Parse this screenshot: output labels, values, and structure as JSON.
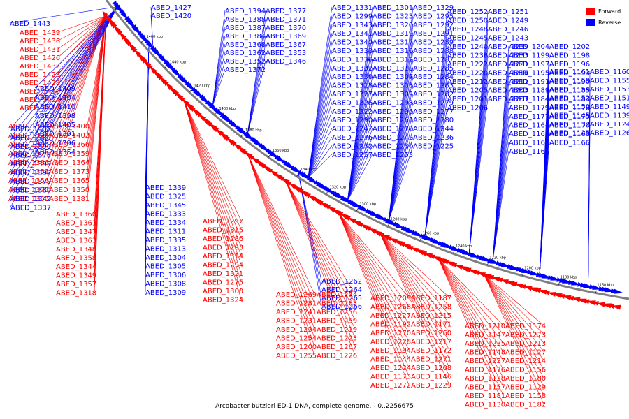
{
  "caption": "Arcobacter butzleri ED-1 DNA, complete genome. - 0..2256675",
  "legend": [
    {
      "label": "Forward",
      "color": "#ff0000"
    },
    {
      "label": "Reverse",
      "color": "#0000ff"
    }
  ],
  "colors": {
    "forward": "#ff0000",
    "reverse": "#0000ff",
    "backbone": "#808080"
  },
  "tick_labels": [
    "1460 kbp",
    "1440 kbp",
    "1420 kbp",
    "1400 kbp",
    "1380 kbp",
    "1360 kbp",
    "1340 kbp",
    "1320 kbp",
    "1300 kbp",
    "1280 kbp",
    "1260 kbp",
    "1240 kbp",
    "1220 kbp",
    "1200 kbp",
    "1180 kbp",
    "1160 kbp"
  ],
  "forward_genes": [
    "ABED_1439",
    "ABED_1436",
    "ABED_1431",
    "ABED_1426",
    "ABED_1432",
    "ABED_1423",
    "ABED_1428",
    "ABED_1418",
    "ABED_1424",
    "ABED_1421",
    "ABED_1383",
    "ABED_1400",
    "ABED_1376",
    "ABED_1402",
    "ABED_1385",
    "ABED_1366",
    "ABED_1374",
    "ABED_1359",
    "ABED_1386",
    "ABED_1364",
    "ABED_1351",
    "ABED_1373",
    "ABED_1356",
    "ABED_1365",
    "ABED_1375",
    "ABED_1350",
    "ABED_1355",
    "ABED_1381",
    "ABED_1360",
    "ABED_1361",
    "ABED_1347",
    "ABED_1363",
    "ABED_1348",
    "ABED_1358",
    "ABED_1344",
    "ABED_1349",
    "ABED_1357",
    "ABED_1318",
    "ABED_1297",
    "ABED_1315",
    "ABED_1286",
    "ABED_1293",
    "ABED_1314",
    "ABED_1294",
    "ABED_1321",
    "ABED_1275",
    "ABED_1300",
    "ABED_1324",
    "ABED_1269",
    "ABED_1274",
    "ABED_1281",
    "ABED_1263",
    "ABED_1241",
    "ABED_1256",
    "ABED_1231",
    "ABED_1259",
    "ABED_1234",
    "ABED_1219",
    "ABED_1254",
    "ABED_1223",
    "ABED_1200",
    "ABED_1267",
    "ABED_1255",
    "ABED_1226",
    "ABED_1209",
    "ABED_1187",
    "ABED_1268",
    "ABED_1258",
    "ABED_1227",
    "ABED_1215",
    "ABED_1192",
    "ABED_1171",
    "ABED_1270",
    "ABED_1260",
    "ABED_1228",
    "ABED_1217",
    "ABED_1194",
    "ABED_1172",
    "ABED_1144",
    "ABED_1271",
    "ABED_1224",
    "ABED_1208",
    "ABED_1173",
    "ABED_1146",
    "ABED_1272",
    "ABED_1229",
    "ABED_1210",
    "ABED_1174",
    "ABED_1147",
    "ABED_1273",
    "ABED_1235",
    "ABED_1213",
    "ABED_1148",
    "ABED_1127",
    "ABED_1237",
    "ABED_1214",
    "ABED_1176",
    "ABED_1156",
    "ABED_1128",
    "ABED_1180",
    "ABED_1157",
    "ABED_1129",
    "ABED_1181",
    "ABED_1158",
    "ABED_1130",
    "ABED_1182",
    "ABED_1162"
  ],
  "reverse_genes": [
    "ABED_1443",
    "ABED_1427",
    "ABED_1420",
    "ABED_1394",
    "ABED_1377",
    "ABED_1388",
    "ABED_1371",
    "ABED_1387",
    "ABED_1370",
    "ABED_1384",
    "ABED_1369",
    "ABED_1368",
    "ABED_1367",
    "ABED_1362",
    "ABED_1353",
    "ABED_1352",
    "ABED_1346",
    "ABED_1372",
    "ABED_1409",
    "ABED_1404",
    "ABED_1410",
    "ABED_1398",
    "ABED_1405",
    "ABED_1391",
    "ABED_1396",
    "ABED_1354",
    "ABED_1408",
    "ABED_1389",
    "ABED_1390",
    "ABED_1378",
    "ABED_1399",
    "ABED_1392",
    "ABED_1379",
    "ABED_1380",
    "ABED_1342",
    "ABED_1337",
    "ABED_1339",
    "ABED_1325",
    "ABED_1345",
    "ABED_1333",
    "ABED_1334",
    "ABED_1311",
    "ABED_1335",
    "ABED_1313",
    "ABED_1304",
    "ABED_1305",
    "ABED_1306",
    "ABED_1308",
    "ABED_1309",
    "ABED_1262",
    "ABED_1264",
    "ABED_1265",
    "ABED_1266",
    "ABED_1331",
    "ABED_1301",
    "ABED_1329",
    "ABED_1299",
    "ABED_1323",
    "ABED_1295",
    "ABED_1343",
    "ABED_1320",
    "ABED_1292",
    "ABED_1341",
    "ABED_1319",
    "ABED_1291",
    "ABED_1340",
    "ABED_1317",
    "ABED_1289",
    "ABED_1338",
    "ABED_1316",
    "ABED_1288",
    "ABED_1336",
    "ABED_1312",
    "ABED_1287",
    "ABED_1332",
    "ABED_1310",
    "ABED_1285",
    "ABED_1330",
    "ABED_1307",
    "ABED_1284",
    "ABED_1328",
    "ABED_1303",
    "ABED_1283",
    "ABED_1327",
    "ABED_1302",
    "ABED_1282",
    "ABED_1326",
    "ABED_1298",
    "ABED_1279",
    "ABED_1322",
    "ABED_1296",
    "ABED_1277",
    "ABED_1290",
    "ABED_1261",
    "ABED_1280",
    "ABED_1247",
    "ABED_1278",
    "ABED_1244",
    "ABED_1276",
    "ABED_1242",
    "ABED_1236",
    "ABED_1232",
    "ABED_1230",
    "ABED_1225",
    "ABED_1257",
    "ABED_1253",
    "ABED_1252",
    "ABED_1251",
    "ABED_1250",
    "ABED_1249",
    "ABED_1248",
    "ABED_1246",
    "ABED_1245",
    "ABED_1243",
    "ABED_1240",
    "ABED_1239",
    "ABED_1238",
    "ABED_1233",
    "ABED_1222",
    "ABED_1221",
    "ABED_1220",
    "ABED_1216",
    "ABED_1212",
    "ABED_1211",
    "ABED_1205",
    "ABED_1203",
    "ABED_1201",
    "ABED_1207",
    "ABED_1206",
    "ABED_1204",
    "ABED_1202",
    "ABED_1199",
    "ABED_1198",
    "ABED_1197",
    "ABED_1196",
    "ABED_1195",
    "ABED_1193",
    "ABED_1191",
    "ABED_1190",
    "ABED_1189",
    "ABED_1185",
    "ABED_1184",
    "ABED_1183",
    "ABED_1179",
    "ABED_1178",
    "ABED_1177",
    "ABED_1175",
    "ABED_1164",
    "ABED_1170",
    "ABED_1169",
    "ABED_1168",
    "ABED_1167",
    "ABED_1166",
    "ABED_1165",
    "ABED_1161",
    "ABED_1160",
    "ABED_1159",
    "ABED_1155",
    "ABED_1154",
    "ABED_1153",
    "ABED_1152",
    "ABED_1151",
    "ABED_1150",
    "ABED_1149",
    "ABED_1145",
    "ABED_1139",
    "ABED_1132",
    "ABED_1124",
    "ABED_1125",
    "ABED_1126"
  ]
}
